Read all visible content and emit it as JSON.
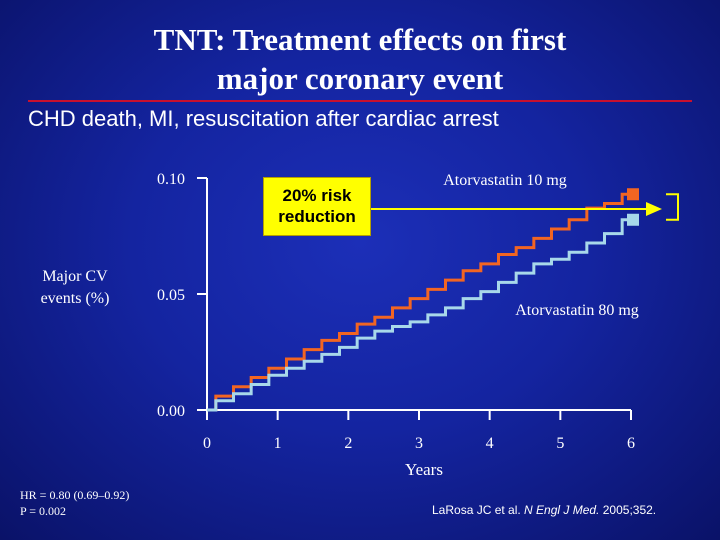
{
  "slide": {
    "title_line1": "TNT: Treatment effects on first",
    "title_line2": "major coronary event",
    "subtitle": "CHD death, MI, resuscitation after cardiac arrest",
    "ylabel_line1": "Major CV",
    "ylabel_line2": "events (%)",
    "footnote_line1": "HR = 0.80 (0.69–0.92)",
    "footnote_line2": "P = 0.002",
    "citation_prefix": "LaRosa JC et al. ",
    "citation_journal": "N Engl J Med.",
    "citation_suffix": " 2005;352.",
    "callout_line1": "20% risk",
    "callout_line2": "reduction",
    "colors": {
      "background": "#1424a0",
      "title_rule": "#c8102e",
      "callout_fill": "#ffff00",
      "arrow": "#ffff00"
    }
  },
  "chart_data": {
    "type": "line",
    "title": "",
    "xlabel": "Years",
    "ylabel": "Major CV events (%)",
    "xlim": [
      0,
      6
    ],
    "ylim": [
      0,
      0.1
    ],
    "xticks": [
      0,
      1,
      2,
      3,
      4,
      5,
      6
    ],
    "yticks": [
      0,
      0.05,
      0.1
    ],
    "ytick_labels": [
      "0.00",
      "0.05",
      "0.10"
    ],
    "grid": false,
    "series": [
      {
        "name": "Atorvastatin 10 mg",
        "color": "#f26522",
        "marker": "square",
        "x": [
          0,
          0.25,
          0.5,
          0.75,
          1.0,
          1.25,
          1.5,
          1.75,
          2.0,
          2.25,
          2.5,
          2.75,
          3.0,
          3.25,
          3.5,
          3.75,
          4.0,
          4.25,
          4.5,
          4.75,
          5.0,
          5.25,
          5.5,
          5.75,
          6.0
        ],
        "values": [
          0.0,
          0.006,
          0.01,
          0.014,
          0.018,
          0.022,
          0.026,
          0.03,
          0.033,
          0.037,
          0.04,
          0.044,
          0.048,
          0.052,
          0.056,
          0.06,
          0.063,
          0.067,
          0.07,
          0.074,
          0.078,
          0.082,
          0.087,
          0.089,
          0.093
        ]
      },
      {
        "name": "Atorvastatin 80 mg",
        "color": "#a8d8ea",
        "marker": "square",
        "x": [
          0,
          0.25,
          0.5,
          0.75,
          1.0,
          1.25,
          1.5,
          1.75,
          2.0,
          2.25,
          2.5,
          2.75,
          3.0,
          3.25,
          3.5,
          3.75,
          4.0,
          4.25,
          4.5,
          4.75,
          5.0,
          5.25,
          5.5,
          5.75,
          6.0
        ],
        "values": [
          0.0,
          0.004,
          0.007,
          0.011,
          0.015,
          0.018,
          0.021,
          0.024,
          0.027,
          0.031,
          0.034,
          0.036,
          0.038,
          0.041,
          0.044,
          0.048,
          0.051,
          0.055,
          0.059,
          0.063,
          0.065,
          0.068,
          0.072,
          0.076,
          0.082
        ]
      }
    ]
  }
}
